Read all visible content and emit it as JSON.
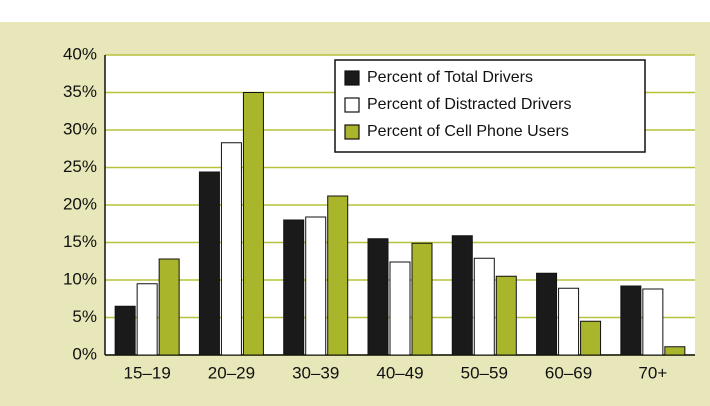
{
  "chart_data": {
    "type": "bar",
    "categories": [
      "15–19",
      "20–29",
      "30–39",
      "40–49",
      "50–59",
      "60–69",
      "70+"
    ],
    "series": [
      {
        "name": "Percent of Total Drivers",
        "color": "#1a1a1a",
        "values": [
          6.5,
          24.4,
          18,
          15.5,
          15.9,
          10.9,
          9.2
        ]
      },
      {
        "name": "Percent of Distracted Drivers",
        "color": "#ffffff",
        "values": [
          9.5,
          28.3,
          18.4,
          12.4,
          12.9,
          8.9,
          8.8
        ]
      },
      {
        "name": "Percent of Cell Phone Users",
        "color": "#a9b52b",
        "values": [
          12.8,
          35,
          21.2,
          14.9,
          10.5,
          4.5,
          1.1
        ]
      }
    ],
    "ylim": [
      0,
      40
    ],
    "yticks": [
      {
        "value": 0,
        "label": "0%"
      },
      {
        "value": 5,
        "label": "5%"
      },
      {
        "value": 10,
        "label": "10%"
      },
      {
        "value": 15,
        "label": "15%"
      },
      {
        "value": 20,
        "label": "20%"
      },
      {
        "value": 25,
        "label": "25%"
      },
      {
        "value": 30,
        "label": "30%"
      },
      {
        "value": 35,
        "label": "35%"
      },
      {
        "value": 40,
        "label": "40%"
      }
    ],
    "grid": true,
    "grid_color": "#b7c23a",
    "legend": "upper right"
  }
}
